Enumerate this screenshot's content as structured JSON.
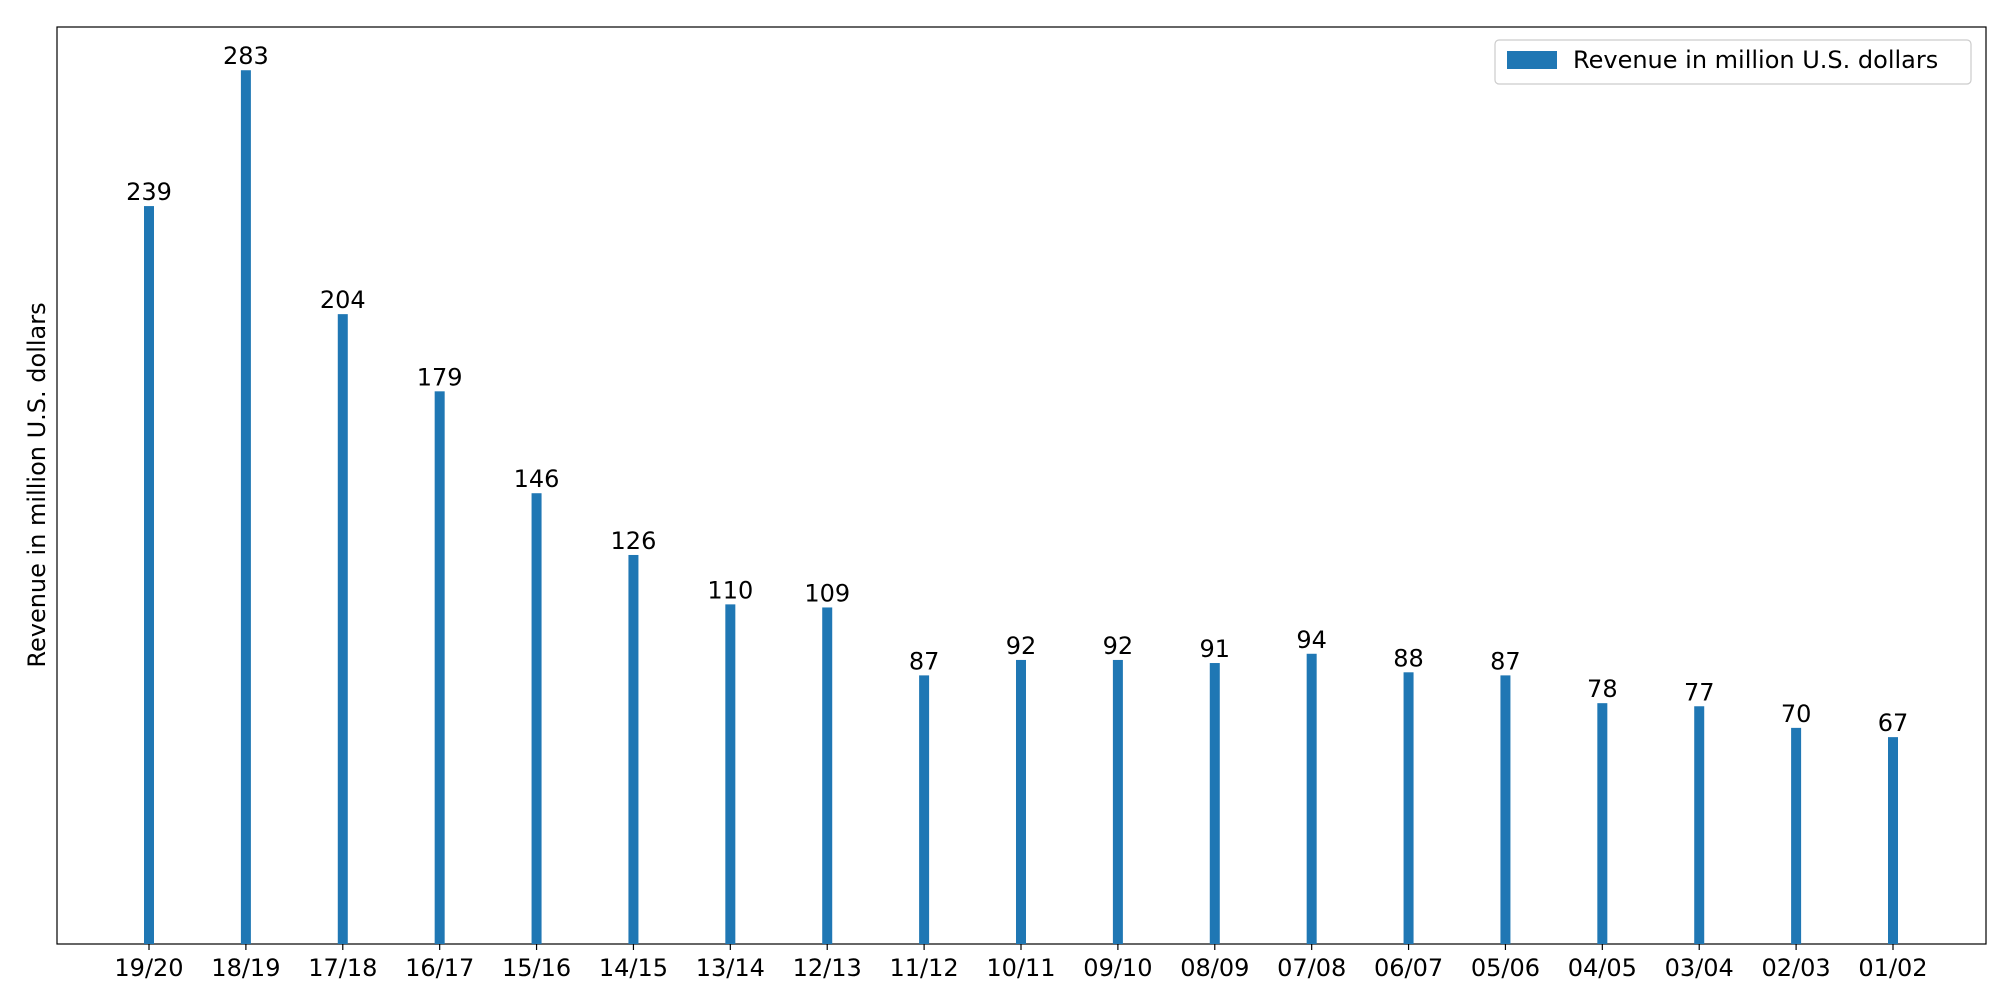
{
  "chart_data": {
    "type": "bar",
    "categories": [
      "19/20",
      "18/19",
      "17/18",
      "16/17",
      "15/16",
      "14/15",
      "13/14",
      "12/13",
      "11/12",
      "10/11",
      "09/10",
      "08/09",
      "07/08",
      "06/07",
      "05/06",
      "04/05",
      "03/04",
      "02/03",
      "01/02"
    ],
    "series": [
      {
        "name": "Revenue in million U.S. dollars",
        "values": [
          239,
          283,
          204,
          179,
          146,
          126,
          110,
          109,
          87,
          92,
          92,
          91,
          94,
          88,
          87,
          78,
          77,
          70,
          67
        ],
        "color": "#1f77b4"
      }
    ],
    "ylabel": "Revenue in million U.S. dollars",
    "xlabel": "",
    "ylim": [
      0,
      297
    ],
    "grid": false,
    "legend_position": "top-right",
    "show_y_ticks": false,
    "data_labels": true
  }
}
